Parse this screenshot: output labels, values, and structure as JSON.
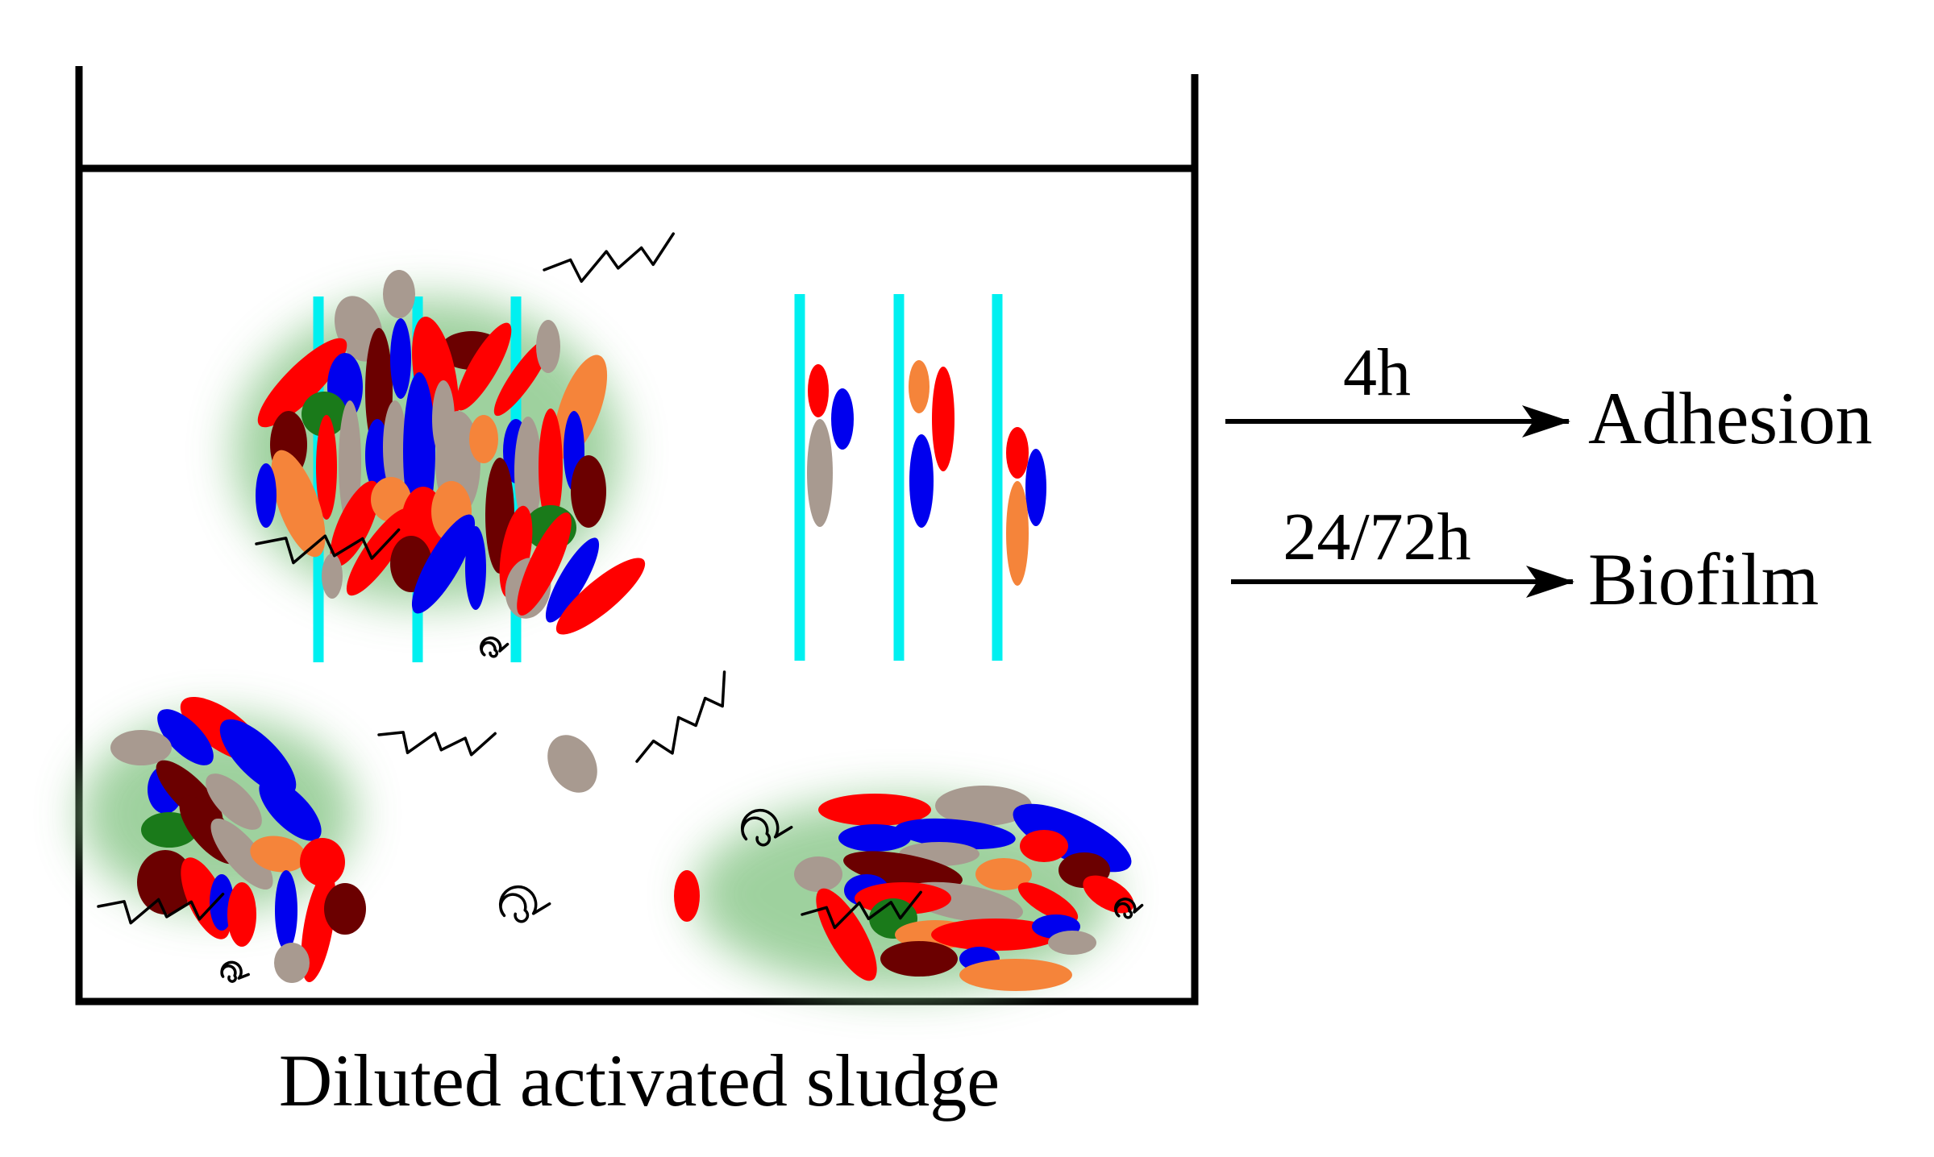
{
  "labels": {
    "caption": "Diluted activated sludge",
    "step1_time": "4h",
    "step1_result": "Adhesion",
    "step2_time": "24/72h",
    "step2_result": "Biofilm"
  },
  "colors": {
    "red": "#ff0000",
    "blue": "#0000ee",
    "maroon": "#6b0000",
    "grey": "#a89a90",
    "orange": "#f5843a",
    "green": "#1a7a1a",
    "cyan": "#00f0f0",
    "eps_glow": "#8ec98e",
    "outline": "#000000"
  },
  "icons": {
    "substratum_strip": "cyan-vertical-bar",
    "cell": "ellipse",
    "coil": "spiral-icon",
    "filament": "zigzag-icon"
  }
}
